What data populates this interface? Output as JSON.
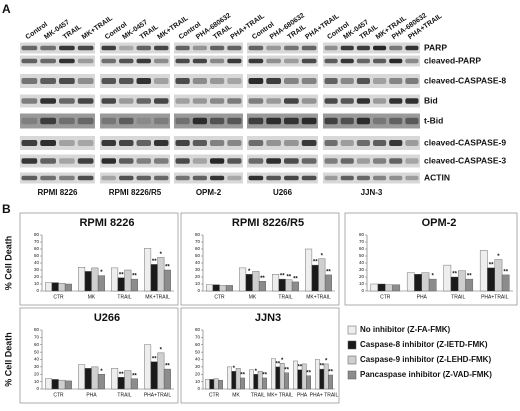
{
  "panel_a": {
    "label": "A",
    "groups": [
      {
        "name": "RPMI 8226",
        "lanes": [
          "Control",
          "MK-0457",
          "TRAIL",
          "MK+TRAIL"
        ]
      },
      {
        "name": "RPMI 8226/R5",
        "lanes": [
          "Control",
          "MK-0457",
          "TRAIL",
          "MK+TRAIL"
        ]
      },
      {
        "name": "OPM-2",
        "lanes": [
          "Control",
          "PHA-680632",
          "TRAIL",
          "PHA+TRAIL"
        ]
      },
      {
        "name": "U266",
        "lanes": [
          "Control",
          "PHA-680632",
          "TRAIL",
          "PHA+TRAIL"
        ]
      },
      {
        "name": "JJN-3",
        "lanes": [
          "Control",
          "MK-0457",
          "TRAIL",
          "MK+TRAIL",
          "PHA-680632",
          "PHA+TRAIL"
        ]
      }
    ],
    "rows": [
      "PARP",
      "cleaved-PARP",
      "cleaved-CASPASE-8",
      "Bid",
      "t-Bid",
      "cleaved-CASPASE-9",
      "cleaved-CASPASE-3",
      "ACTIN"
    ]
  },
  "panel_b_label": "B",
  "legend": [
    {
      "name": "No inhibitor (Z-FA-FMK)",
      "color": "#eeeeee"
    },
    {
      "name": "Caspase-8 inhibitor (Z-IETD-FMK)",
      "color": "#1a1a1a"
    },
    {
      "name": "Caspase-9 inhibitor (Z-LEHD-FMK)",
      "color": "#cfcfcf"
    },
    {
      "name": "Pancaspase inhibitor (Z-VAD-FMK)",
      "color": "#8c8c8c"
    }
  ],
  "chart_data": [
    {
      "type": "bar",
      "title": "RPMI 8226",
      "y_label": "% Cell Death",
      "categories": [
        "CTR",
        "MK",
        "TRAIL",
        "MK+TRAIL"
      ],
      "series": [
        {
          "values": [
            12,
            34,
            33,
            61
          ]
        },
        {
          "values": [
            12,
            28,
            19,
            38
          ],
          "significance": [
            null,
            null,
            "**",
            "**"
          ]
        },
        {
          "values": [
            11,
            33,
            30,
            48
          ],
          "significance": [
            null,
            null,
            null,
            "*"
          ]
        },
        {
          "values": [
            10,
            22,
            17,
            30
          ],
          "significance": [
            null,
            "*",
            "**",
            "**"
          ]
        }
      ],
      "ylim": [
        0,
        80
      ],
      "yticks": [
        0,
        10,
        20,
        30,
        40,
        50,
        60,
        70,
        80
      ]
    },
    {
      "type": "bar",
      "title": "RPMI 8226/R5",
      "categories": [
        "CTR",
        "MK",
        "TRAIL",
        "MK+TRAIL"
      ],
      "series": [
        {
          "values": [
            9,
            33,
            24,
            60
          ]
        },
        {
          "values": [
            9,
            24,
            17,
            37
          ],
          "significance": [
            null,
            "*",
            "**",
            "**"
          ]
        },
        {
          "values": [
            8,
            28,
            16,
            46
          ],
          "significance": [
            null,
            null,
            "**",
            "*"
          ]
        },
        {
          "values": [
            8,
            14,
            13,
            23
          ],
          "significance": [
            null,
            "**",
            "**",
            "**"
          ]
        }
      ],
      "ylim": [
        0,
        80
      ],
      "yticks": [
        0,
        10,
        20,
        30,
        40,
        50,
        60,
        70,
        80
      ]
    },
    {
      "type": "bar",
      "title": "OPM-2",
      "categories": [
        "CTR",
        "PHA",
        "TRAIL",
        "PHA+TRAIL"
      ],
      "series": [
        {
          "values": [
            10,
            26,
            37,
            58
          ]
        },
        {
          "values": [
            10,
            24,
            20,
            33
          ],
          "significance": [
            null,
            null,
            "**",
            "**"
          ]
        },
        {
          "values": [
            9,
            26,
            29,
            45
          ],
          "significance": [
            null,
            null,
            null,
            "*"
          ]
        },
        {
          "values": [
            9,
            17,
            17,
            23
          ],
          "significance": [
            null,
            "*",
            "**",
            "**"
          ]
        }
      ],
      "ylim": [
        0,
        80
      ],
      "yticks": [
        0,
        10,
        20,
        30,
        40,
        50,
        60,
        70,
        80
      ]
    },
    {
      "type": "bar",
      "title": "U266",
      "y_label": "% Cell Death",
      "categories": [
        "CTR",
        "PHA",
        "TRAIL",
        "PHA+TRAIL"
      ],
      "series": [
        {
          "values": [
            14,
            33,
            28,
            60
          ]
        },
        {
          "values": [
            13,
            28,
            16,
            37
          ],
          "significance": [
            null,
            null,
            "**",
            "**"
          ]
        },
        {
          "values": [
            12,
            30,
            25,
            49
          ],
          "significance": [
            null,
            null,
            null,
            "*"
          ]
        },
        {
          "values": [
            11,
            20,
            14,
            27
          ],
          "significance": [
            null,
            "*",
            "**",
            "**"
          ]
        }
      ],
      "ylim": [
        0,
        80
      ],
      "yticks": [
        0,
        10,
        20,
        30,
        40,
        50,
        60,
        70,
        80
      ]
    },
    {
      "type": "bar",
      "title": "JJN3",
      "categories": [
        "CTR",
        "MK",
        "TRAIL",
        "MK+ TRAIL",
        "PHA",
        "PHA+ TRAIL"
      ],
      "series": [
        {
          "values": [
            13,
            30,
            26,
            41,
            38,
            40
          ]
        },
        {
          "values": [
            13,
            24,
            20,
            30,
            26,
            27
          ],
          "significance": [
            null,
            "*",
            "*",
            "**",
            "**",
            "**"
          ]
        },
        {
          "values": [
            14,
            28,
            24,
            35,
            34,
            34
          ],
          "significance": [
            null,
            null,
            null,
            "*",
            null,
            "*"
          ]
        },
        {
          "values": [
            12,
            15,
            15,
            22,
            18,
            19
          ],
          "significance": [
            null,
            "**",
            "**",
            "**",
            "**",
            "**"
          ]
        }
      ],
      "ylim": [
        0,
        80
      ],
      "yticks": [
        0,
        10,
        20,
        30,
        40,
        50,
        60,
        70,
        80
      ]
    }
  ]
}
